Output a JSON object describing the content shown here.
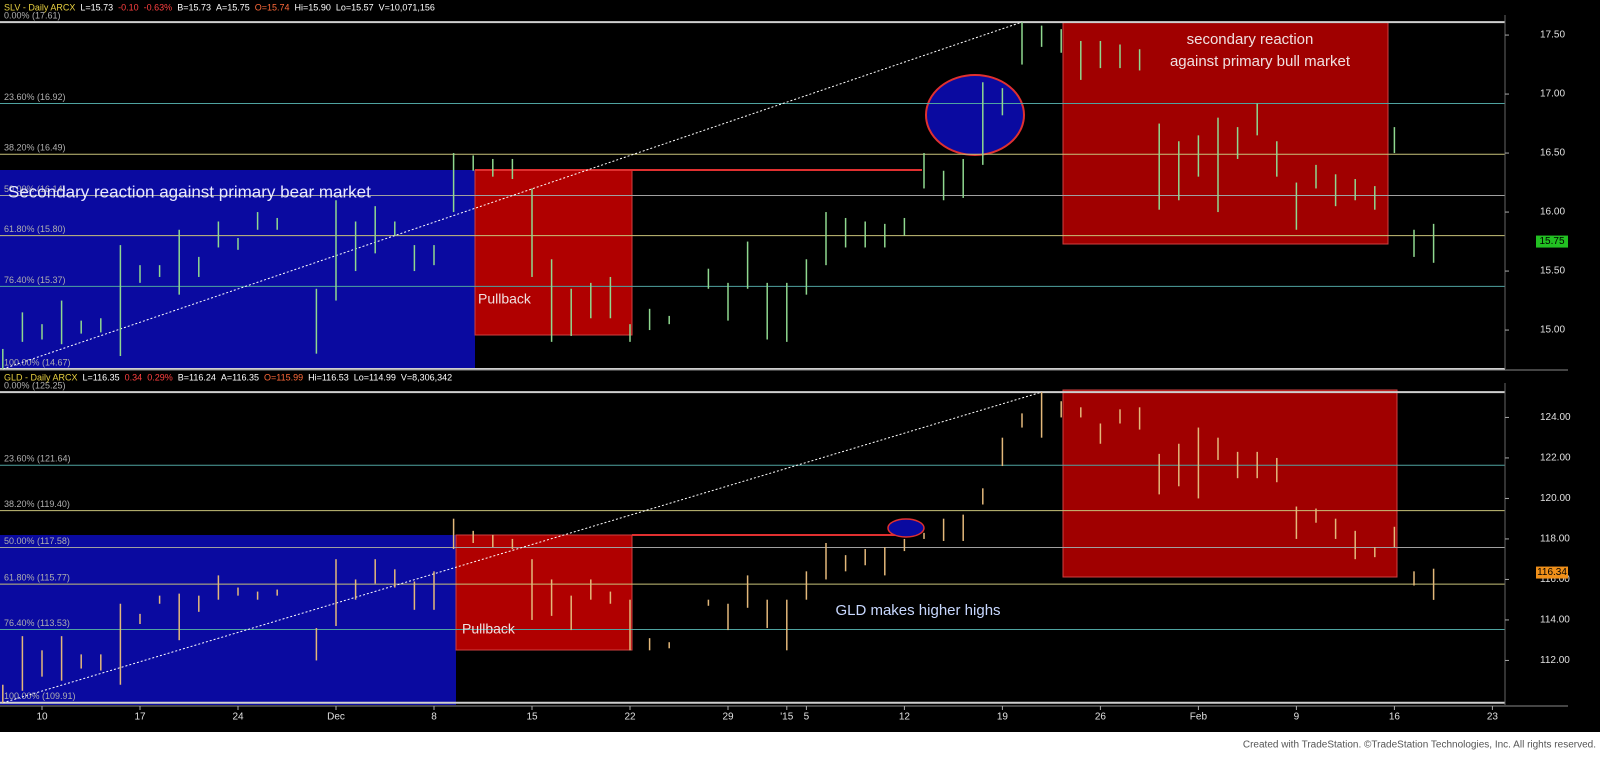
{
  "chart_data": [
    {
      "type": "ohlc",
      "color": "#8fd88f",
      "header": [
        "SLV - Daily ARCX",
        "L=15.73",
        "-0.10",
        "-0.63%",
        "B=15.73",
        "A=15.75",
        "O=15.74",
        "Hi=15.90",
        "Lo=15.57",
        "V=10,071,156"
      ],
      "ylim": [
        14.67,
        17.67
      ],
      "yticks": [
        {
          "value": 15,
          "label": "15.00"
        },
        {
          "value": 15.5,
          "label": "15.50"
        },
        {
          "value": 16,
          "label": "16.00"
        },
        {
          "value": 16.5,
          "label": "16.50"
        },
        {
          "value": 17,
          "label": "17.00"
        },
        {
          "value": 17.5,
          "label": "17.50"
        }
      ],
      "fib_levels": [
        {
          "value": 17.61,
          "label": "0.00% (17.61)"
        },
        {
          "value": 16.92,
          "label": "23.60% (16.92)"
        },
        {
          "value": 16.49,
          "label": "38.20% (16.49)"
        },
        {
          "value": 16.14,
          "label": "50.00% (16.14)"
        },
        {
          "value": 15.8,
          "label": "61.80% (15.80)"
        },
        {
          "value": 15.37,
          "label": "76.40% (15.37)"
        },
        {
          "value": 14.67,
          "label": "100.00% (14.67)"
        }
      ],
      "last_price": 15.75,
      "last_color": "#22c022",
      "annotations": [
        "Secondary reaction  against primary bear market",
        "Pullback",
        "secondary reaction",
        "against primary bull market"
      ],
      "high": [
        14.84,
        15.15,
        15.05,
        15.25,
        15.08,
        15.1,
        15.72,
        15.55,
        15.55,
        15.85,
        15.62,
        15.92,
        15.78,
        16.0,
        15.95,
        null,
        15.35,
        16.1,
        15.92,
        16.05,
        15.92,
        15.72,
        15.72,
        16.5,
        16.48,
        16.45,
        16.45,
        16.2,
        15.6,
        15.35,
        15.4,
        15.45,
        15.05,
        15.18,
        15.12,
        null,
        15.52,
        15.4,
        15.75,
        15.4,
        15.4,
        15.6,
        16.0,
        15.95,
        15.92,
        15.9,
        15.95,
        16.5,
        16.35,
        16.45,
        17.1,
        17.05,
        17.61,
        17.58,
        17.55,
        17.45,
        17.45,
        17.42,
        17.38,
        16.75,
        16.6,
        16.65,
        16.8,
        16.72,
        16.92,
        16.6,
        16.25,
        16.4,
        16.32,
        16.28,
        16.22,
        16.72,
        15.85,
        15.9,
        null,
        null,
        null
      ],
      "low": [
        14.67,
        14.9,
        14.92,
        14.88,
        14.97,
        14.98,
        14.78,
        15.4,
        15.45,
        15.3,
        15.45,
        15.7,
        15.68,
        15.85,
        15.85,
        null,
        14.8,
        15.25,
        15.5,
        15.65,
        15.8,
        15.5,
        15.55,
        16.0,
        16.35,
        16.3,
        16.28,
        15.45,
        14.9,
        14.95,
        15.1,
        15.1,
        14.9,
        15.0,
        15.05,
        null,
        15.35,
        15.08,
        15.35,
        14.92,
        14.9,
        15.3,
        15.55,
        15.7,
        15.7,
        15.7,
        15.8,
        16.2,
        16.1,
        16.12,
        16.4,
        16.82,
        17.25,
        17.4,
        17.35,
        17.12,
        17.22,
        17.22,
        17.2,
        16.02,
        16.1,
        16.3,
        16.0,
        16.45,
        16.65,
        16.3,
        15.85,
        16.2,
        16.05,
        16.1,
        16.02,
        16.5,
        15.62,
        15.57,
        null,
        null,
        null
      ]
    },
    {
      "type": "ohlc",
      "color": "#e3b87a",
      "header": [
        "GLD - Daily ARCX",
        "L=116.35",
        "0.34",
        "0.29%",
        "B=116.24",
        "A=116.35",
        "O=115.99",
        "Hi=116.53",
        "Lo=114.99",
        "V=8,306,342"
      ],
      "ylim": [
        109.8,
        125.7
      ],
      "yticks": [
        {
          "value": 112,
          "label": "112.00"
        },
        {
          "value": 114,
          "label": "114.00"
        },
        {
          "value": 116,
          "label": "116.00"
        },
        {
          "value": 118,
          "label": "118.00"
        },
        {
          "value": 120,
          "label": "120.00"
        },
        {
          "value": 122,
          "label": "122.00"
        },
        {
          "value": 124,
          "label": "124.00"
        }
      ],
      "fib_levels": [
        {
          "value": 125.25,
          "label": "0.00% (125.25)"
        },
        {
          "value": 121.64,
          "label": "23.60% (121.64)"
        },
        {
          "value": 119.4,
          "label": "38.20% (119.40)"
        },
        {
          "value": 117.58,
          "label": "50.00% (117.58)"
        },
        {
          "value": 115.77,
          "label": "61.80% (115.77)"
        },
        {
          "value": 113.53,
          "label": "76.40% (113.53)"
        },
        {
          "value": 109.91,
          "label": "100.00% (109.91)"
        }
      ],
      "last_price": 116.34,
      "last_color": "#f0901a",
      "annotations": [
        "Pullback",
        "GLD makes higher highs"
      ],
      "categories": [
        null,
        null,
        "10",
        null,
        null,
        null,
        null,
        "17",
        null,
        null,
        null,
        null,
        "24",
        null,
        null,
        null,
        null,
        "Dec",
        null,
        null,
        null,
        null,
        "8",
        null,
        null,
        null,
        null,
        "15",
        null,
        null,
        null,
        null,
        "22",
        null,
        null,
        null,
        null,
        "29",
        null,
        null,
        "'15",
        "5",
        null,
        null,
        null,
        null,
        "12",
        null,
        null,
        null,
        null,
        "19",
        null,
        null,
        null,
        null,
        "26",
        null,
        null,
        null,
        null,
        "Feb",
        null,
        null,
        null,
        null,
        "9",
        null,
        null,
        null,
        null,
        "16",
        null,
        null,
        null,
        null,
        "23"
      ],
      "high": [
        110.8,
        113.2,
        112.5,
        113.2,
        112.3,
        112.3,
        114.8,
        114.3,
        115.2,
        115.3,
        115.2,
        116.2,
        115.6,
        115.4,
        115.5,
        null,
        113.6,
        117.0,
        116.0,
        117.0,
        116.5,
        115.9,
        116.4,
        119.0,
        118.4,
        118.2,
        118.0,
        117.0,
        116.0,
        115.2,
        116.0,
        115.4,
        115.0,
        113.1,
        112.9,
        null,
        115.0,
        114.8,
        116.2,
        115.0,
        115.0,
        116.4,
        117.8,
        117.2,
        117.5,
        117.6,
        118.0,
        118.3,
        119.0,
        119.2,
        120.5,
        123.0,
        124.2,
        125.25,
        124.8,
        124.5,
        123.7,
        124.4,
        124.5,
        122.2,
        122.7,
        123.5,
        123.0,
        122.3,
        122.3,
        122.0,
        119.6,
        119.5,
        119.0,
        118.4,
        117.6,
        118.6,
        116.4,
        116.53,
        null,
        null,
        null
      ],
      "low": [
        109.91,
        110.5,
        111.2,
        111.0,
        111.6,
        111.5,
        110.8,
        113.8,
        114.8,
        113.0,
        114.4,
        115.0,
        115.2,
        115.0,
        115.2,
        null,
        112.0,
        113.7,
        115.0,
        115.8,
        115.6,
        114.5,
        114.5,
        117.5,
        117.8,
        117.6,
        117.5,
        114.0,
        114.2,
        113.5,
        115.0,
        114.8,
        112.5,
        112.5,
        112.6,
        null,
        114.7,
        113.5,
        114.6,
        113.6,
        112.5,
        115.0,
        116.0,
        116.4,
        116.7,
        116.2,
        117.4,
        118.0,
        117.9,
        117.9,
        119.7,
        121.6,
        123.5,
        123.0,
        124.0,
        124.0,
        122.7,
        123.7,
        123.4,
        120.2,
        120.6,
        120.0,
        121.9,
        121.0,
        121.0,
        120.8,
        118.0,
        118.8,
        118.0,
        117.0,
        117.1,
        117.6,
        115.7,
        114.99,
        null,
        null,
        null
      ]
    }
  ],
  "footer": "Created with TradeStation. ©TradeStation Technologies, Inc. All rights reserved."
}
